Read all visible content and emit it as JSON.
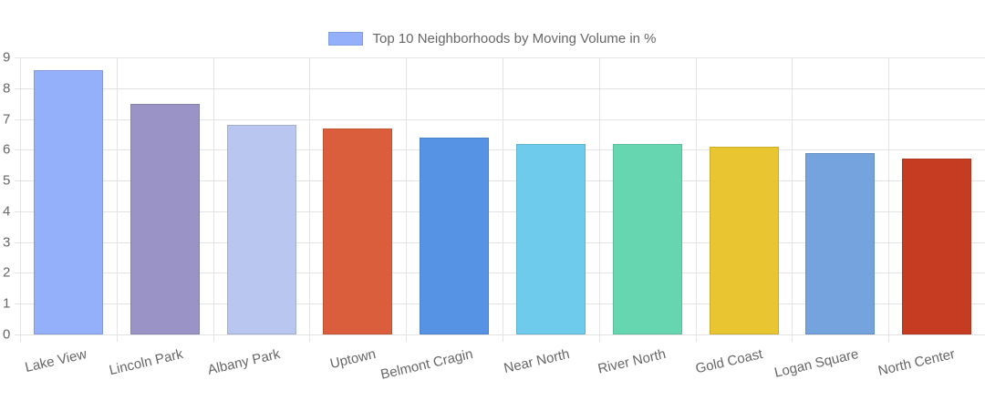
{
  "chart_data": {
    "type": "bar",
    "title": "",
    "legend": [
      "Top 10 Neighborhoods by Moving Volume in %"
    ],
    "legend_position": "top",
    "xlabel": "",
    "ylabel": "",
    "ylim": [
      0,
      9
    ],
    "yticks": [
      0,
      1,
      2,
      3,
      4,
      5,
      6,
      7,
      8,
      9
    ],
    "grid": true,
    "categories": [
      "Lake View",
      "Lincoln Park",
      "Albany Park",
      "Uptown",
      "Belmont Cragin",
      "Near North",
      "River North",
      "Gold Coast",
      "Logan Square",
      "North Center"
    ],
    "series": [
      {
        "name": "Top 10 Neighborhoods by Moving Volume in %",
        "values": [
          8.6,
          7.5,
          6.8,
          6.7,
          6.4,
          6.2,
          6.2,
          6.1,
          5.9,
          5.7
        ]
      }
    ],
    "colors": [
      "#94b0fb",
      "#9a93c5",
      "#b8c6f0",
      "#da5e3b",
      "#5693e4",
      "#6fcbeb",
      "#66d6b0",
      "#e8c531",
      "#74a3de",
      "#c53c22"
    ]
  },
  "legend": {
    "label": "Top 10 Neighborhoods by Moving Volume in %",
    "swatch_color": "#94b0fb"
  }
}
